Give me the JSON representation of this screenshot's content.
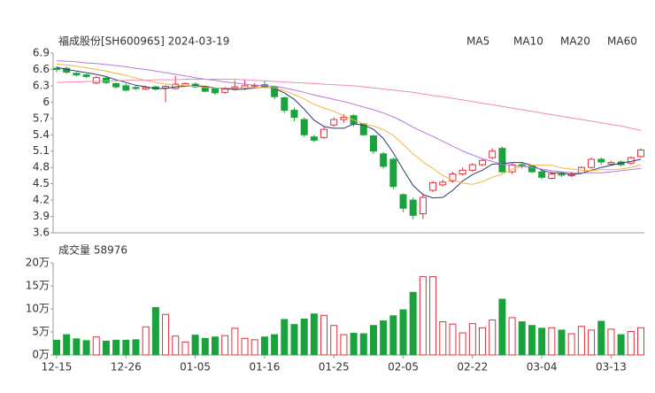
{
  "chart_data": [
    {
      "type": "candlestick",
      "title": "福成股份[SH600965] 2024-03-19",
      "categories": [
        "12-15",
        null,
        null,
        null,
        null,
        null,
        null,
        "12-26",
        null,
        null,
        null,
        null,
        null,
        null,
        "01-05",
        null,
        null,
        null,
        null,
        null,
        null,
        "01-16",
        null,
        null,
        null,
        null,
        null,
        null,
        "01-25",
        null,
        null,
        null,
        null,
        null,
        null,
        "02-05",
        null,
        null,
        null,
        null,
        null,
        null,
        "02-22",
        null,
        null,
        null,
        null,
        null,
        null,
        "03-04",
        null,
        null,
        null,
        null,
        null,
        null,
        "03-13",
        null,
        null,
        null
      ],
      "open": [
        6.62,
        6.62,
        6.53,
        6.5,
        6.35,
        6.44,
        6.34,
        6.3,
        6.27,
        6.24,
        6.28,
        6.26,
        6.25,
        6.3,
        6.33,
        6.28,
        6.25,
        6.18,
        6.25,
        6.26,
        6.3,
        6.32,
        6.28,
        6.08,
        5.85,
        5.68,
        5.36,
        5.35,
        5.58,
        5.68,
        5.75,
        5.6,
        5.38,
        5.05,
        4.95,
        4.3,
        4.2,
        3.95,
        4.38,
        4.48,
        4.55,
        4.68,
        4.75,
        4.85,
        4.98,
        5.15,
        4.72,
        4.85,
        4.82,
        4.72,
        4.6,
        4.68,
        4.65,
        4.7,
        4.8,
        4.95,
        4.86,
        4.9,
        4.88,
        5.0
      ],
      "high": [
        6.66,
        6.65,
        6.55,
        6.52,
        6.48,
        6.46,
        6.36,
        6.34,
        6.3,
        6.3,
        6.3,
        6.31,
        6.48,
        6.36,
        6.36,
        6.3,
        6.27,
        6.28,
        6.4,
        6.42,
        6.35,
        6.4,
        6.3,
        6.1,
        5.9,
        5.72,
        5.4,
        5.55,
        5.72,
        5.78,
        5.78,
        5.62,
        5.4,
        5.08,
        4.98,
        4.32,
        4.25,
        4.3,
        4.55,
        4.58,
        4.72,
        4.8,
        4.88,
        4.96,
        5.15,
        5.18,
        4.88,
        4.9,
        4.85,
        4.76,
        4.72,
        4.72,
        4.72,
        4.82,
        4.98,
        4.98,
        4.92,
        4.93,
        5.0,
        5.15
      ],
      "low": [
        6.55,
        6.52,
        6.47,
        6.44,
        6.33,
        6.33,
        6.25,
        6.2,
        6.22,
        6.22,
        6.21,
        6.0,
        6.23,
        6.28,
        6.26,
        6.18,
        6.13,
        6.15,
        6.22,
        6.22,
        6.26,
        6.25,
        6.05,
        5.8,
        5.65,
        5.36,
        5.26,
        5.32,
        5.55,
        5.62,
        5.55,
        5.38,
        5.05,
        4.78,
        4.4,
        3.98,
        3.85,
        3.85,
        4.35,
        4.45,
        4.52,
        4.65,
        4.72,
        4.82,
        4.95,
        4.7,
        4.68,
        4.78,
        4.7,
        4.58,
        4.58,
        4.63,
        4.62,
        4.68,
        4.78,
        4.85,
        4.84,
        4.82,
        4.86,
        4.98
      ],
      "close": [
        6.6,
        6.55,
        6.5,
        6.47,
        6.45,
        6.36,
        6.28,
        6.22,
        6.25,
        6.27,
        6.24,
        6.29,
        6.33,
        6.34,
        6.28,
        6.2,
        6.17,
        6.24,
        6.28,
        6.3,
        6.31,
        6.28,
        6.1,
        5.85,
        5.72,
        5.4,
        5.3,
        5.5,
        5.68,
        5.72,
        5.6,
        5.4,
        5.1,
        4.82,
        4.45,
        4.05,
        3.92,
        4.25,
        4.52,
        4.53,
        4.68,
        4.75,
        4.85,
        4.93,
        5.1,
        4.72,
        4.85,
        4.83,
        4.72,
        4.62,
        4.68,
        4.66,
        4.68,
        4.8,
        4.95,
        4.9,
        4.89,
        4.85,
        4.98,
        5.12
      ],
      "up_color": "#e0303c",
      "down_color": "#1aa33d",
      "series": [
        {
          "name": "MA5",
          "color": "#2b3a67",
          "values": [
            6.64,
            6.6,
            6.57,
            6.54,
            6.51,
            6.47,
            6.41,
            6.36,
            6.31,
            6.28,
            6.25,
            6.25,
            6.28,
            6.29,
            6.3,
            6.29,
            6.26,
            6.25,
            6.23,
            6.24,
            6.26,
            6.28,
            6.25,
            6.17,
            6.05,
            5.87,
            5.67,
            5.55,
            5.52,
            5.52,
            5.6,
            5.58,
            5.5,
            5.33,
            5.07,
            4.76,
            4.47,
            4.3,
            4.24,
            4.25,
            4.38,
            4.55,
            4.67,
            4.75,
            4.86,
            4.87,
            4.89,
            4.89,
            4.84,
            4.75,
            4.7,
            4.7,
            4.67,
            4.69,
            4.75,
            4.8,
            4.84,
            4.88,
            4.91,
            4.95
          ]
        },
        {
          "name": "MA10",
          "color": "#f5b342",
          "values": [
            6.7,
            6.68,
            6.66,
            6.63,
            6.6,
            6.57,
            6.53,
            6.49,
            6.44,
            6.4,
            6.36,
            6.33,
            6.32,
            6.3,
            6.29,
            6.27,
            6.26,
            6.26,
            6.26,
            6.26,
            6.27,
            6.27,
            6.26,
            6.21,
            6.14,
            6.06,
            5.96,
            5.89,
            5.83,
            5.75,
            5.67,
            5.6,
            5.56,
            5.49,
            5.39,
            5.22,
            5.05,
            4.9,
            4.78,
            4.65,
            4.57,
            4.51,
            4.49,
            4.54,
            4.62,
            4.68,
            4.77,
            4.82,
            4.84,
            4.84,
            4.84,
            4.79,
            4.77,
            4.75,
            4.74,
            4.76,
            4.76,
            4.77,
            4.8,
            4.85
          ]
        },
        {
          "name": "MA20",
          "color": "#b678e0",
          "values": [
            6.76,
            6.75,
            6.74,
            6.72,
            6.71,
            6.69,
            6.67,
            6.65,
            6.62,
            6.6,
            6.57,
            6.54,
            6.51,
            6.48,
            6.45,
            6.42,
            6.4,
            6.37,
            6.35,
            6.33,
            6.31,
            6.3,
            6.29,
            6.26,
            6.22,
            6.18,
            6.13,
            6.09,
            6.05,
            6.01,
            5.96,
            5.91,
            5.86,
            5.8,
            5.73,
            5.64,
            5.54,
            5.45,
            5.37,
            5.28,
            5.19,
            5.1,
            5.03,
            4.96,
            4.91,
            4.86,
            4.84,
            4.82,
            4.8,
            4.77,
            4.74,
            4.72,
            4.7,
            4.7,
            4.7,
            4.7,
            4.72,
            4.74,
            4.76,
            4.78
          ]
        },
        {
          "name": "MA60",
          "color": "#f28cb8",
          "values": [
            6.36,
            6.37,
            6.37,
            6.38,
            6.38,
            6.39,
            6.39,
            6.4,
            6.4,
            6.4,
            6.41,
            6.41,
            6.41,
            6.42,
            6.42,
            6.42,
            6.42,
            6.42,
            6.42,
            6.41,
            6.4,
            6.39,
            6.38,
            6.37,
            6.36,
            6.35,
            6.34,
            6.33,
            6.32,
            6.31,
            6.3,
            6.28,
            6.26,
            6.24,
            6.22,
            6.2,
            6.18,
            6.15,
            6.12,
            6.1,
            6.07,
            6.04,
            6.01,
            5.98,
            5.95,
            5.92,
            5.89,
            5.86,
            5.83,
            5.8,
            5.77,
            5.74,
            5.71,
            5.68,
            5.65,
            5.62,
            5.59,
            5.56,
            5.52,
            5.48
          ]
        }
      ],
      "ylim": [
        3.6,
        6.9
      ],
      "yticks": [
        3.6,
        3.9,
        4.2,
        4.5,
        4.8,
        5.1,
        5.4,
        5.7,
        6,
        6.3,
        6.6,
        6.9
      ]
    },
    {
      "type": "bar",
      "title": "成交量 58976",
      "values": [
        3.2,
        4.4,
        3.5,
        3.1,
        3.9,
        3.0,
        3.2,
        3.2,
        3.3,
        6.1,
        10.3,
        8.8,
        4.1,
        2.8,
        4.3,
        3.6,
        3.9,
        4.2,
        5.8,
        3.6,
        3.3,
        3.9,
        4.4,
        7.7,
        6.6,
        7.8,
        8.9,
        8.6,
        6.4,
        4.4,
        4.7,
        4.6,
        6.4,
        7.4,
        8.5,
        9.8,
        13.6,
        17.0,
        17.0,
        7.2,
        6.7,
        4.8,
        6.8,
        5.9,
        7.6,
        12.1,
        8.1,
        7.2,
        6.4,
        5.8,
        5.9,
        5.4,
        4.6,
        6.2,
        5.4,
        7.3,
        5.6,
        4.4,
        5.1,
        5.9
      ],
      "ylim": [
        0,
        20
      ],
      "yticks": [
        {
          "value": 0,
          "label": "0万"
        },
        {
          "value": 5,
          "label": "5万"
        },
        {
          "value": 10,
          "label": "10万"
        },
        {
          "value": 15,
          "label": "15万"
        },
        {
          "value": 20,
          "label": "20万"
        }
      ]
    }
  ]
}
